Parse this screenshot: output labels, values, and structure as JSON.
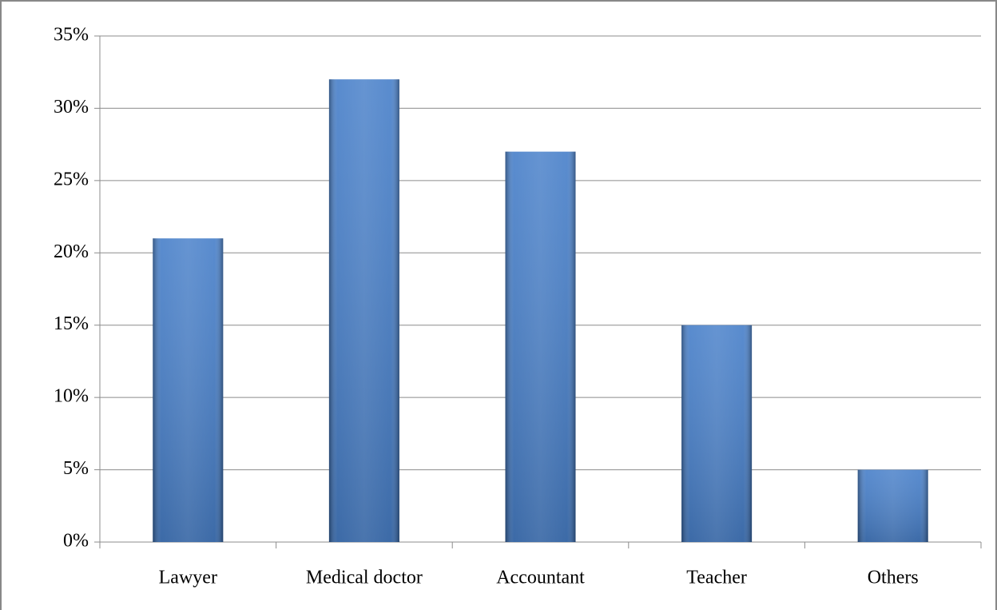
{
  "chart_data": {
    "type": "bar",
    "categories": [
      "Lawyer",
      "Medical doctor",
      "Accountant",
      "Teacher",
      "Others"
    ],
    "values": [
      21,
      32,
      27,
      15,
      5
    ],
    "color": "#3d78c6",
    "ylim": [
      0,
      35
    ],
    "yticks": [
      {
        "value": 0,
        "label": "0%"
      },
      {
        "value": 5,
        "label": "5%"
      },
      {
        "value": 10,
        "label": "10%"
      },
      {
        "value": 15,
        "label": "15%"
      },
      {
        "value": 20,
        "label": "20%"
      },
      {
        "value": 25,
        "label": "25%"
      },
      {
        "value": 30,
        "label": "30%"
      },
      {
        "value": 35,
        "label": "35%"
      }
    ],
    "grid": true
  }
}
